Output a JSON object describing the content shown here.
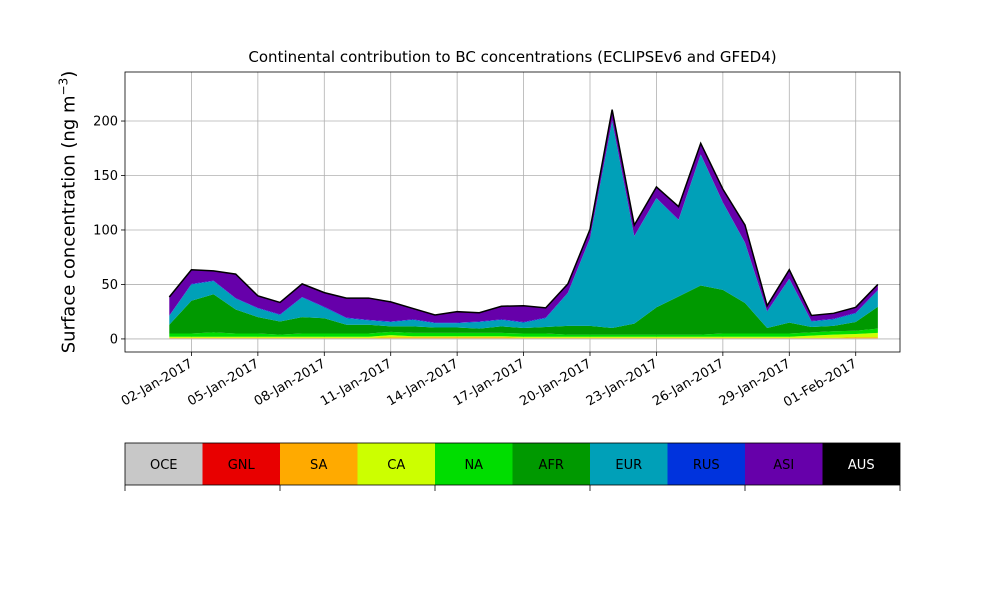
{
  "chart_data": {
    "type": "area",
    "stacked": true,
    "title": "Continental contribution to BC concentrations (ECLIPSEv6 and GFED4)",
    "xlabel": "",
    "ylabel_main": "Surface concentration (ng m",
    "ylabel_sup": "−3",
    "ylabel_end": ")",
    "x_start": "2017-01-01",
    "x_end": "2017-02-01",
    "xlim": [
      "2016-12-30",
      "2017-02-03"
    ],
    "ylim": [
      -12,
      245
    ],
    "y_ticks": [
      0,
      50,
      100,
      150,
      200
    ],
    "x_tick_labels": [
      "02-Jan-2017",
      "05-Jan-2017",
      "08-Jan-2017",
      "11-Jan-2017",
      "14-Jan-2017",
      "17-Jan-2017",
      "20-Jan-2017",
      "23-Jan-2017",
      "26-Jan-2017",
      "29-Jan-2017",
      "01-Feb-2017"
    ],
    "x_tick_dates": [
      "2017-01-02",
      "2017-01-05",
      "2017-01-08",
      "2017-01-11",
      "2017-01-14",
      "2017-01-17",
      "2017-01-20",
      "2017-01-23",
      "2017-01-26",
      "2017-01-29",
      "2017-02-01"
    ],
    "grid": true,
    "series": [
      {
        "name": "OCE",
        "color": "#c8c8c8",
        "values": [
          0.5,
          0.5,
          0.5,
          0.5,
          0.5,
          0.5,
          0.5,
          0.5,
          0.5,
          0.5,
          0.5,
          0.5,
          0.5,
          0.5,
          0.5,
          0.5,
          0.5,
          0.5,
          0.5,
          0.5,
          0.5,
          0.5,
          0.5,
          0.5,
          0.5,
          0.5,
          0.5,
          0.5,
          0.5,
          0.5,
          0.5,
          0.5,
          0.5
        ]
      },
      {
        "name": "GNL",
        "color": "#e80000",
        "values": [
          0,
          0,
          0,
          0,
          0,
          0,
          0,
          0,
          0,
          0,
          0,
          0,
          0,
          0,
          0,
          0,
          0,
          0,
          0,
          0,
          0,
          0,
          0,
          0,
          0,
          0,
          0,
          0,
          0,
          0,
          0,
          0,
          0
        ]
      },
      {
        "name": "SA",
        "color": "#ffaa00",
        "values": [
          0.5,
          0.5,
          0.5,
          0.5,
          0.5,
          0.5,
          0.5,
          0.5,
          0.5,
          0.5,
          1,
          1,
          1,
          1,
          1,
          1,
          0.5,
          0.5,
          0.5,
          0.5,
          0.5,
          0.5,
          0.5,
          0.5,
          0.5,
          0.5,
          0.5,
          0.5,
          0.5,
          0.5,
          0.5,
          1,
          1
        ]
      },
      {
        "name": "CA",
        "color": "#ccff00",
        "values": [
          1,
          1,
          1,
          1,
          1,
          1,
          1,
          1,
          1,
          1,
          2,
          1,
          1,
          1,
          1,
          1,
          1,
          1,
          1,
          1,
          1,
          1,
          1,
          1,
          1,
          1,
          1,
          1,
          1,
          2,
          3,
          3,
          4
        ]
      },
      {
        "name": "NA",
        "color": "#00dd00",
        "values": [
          3,
          3,
          4,
          3,
          3,
          2,
          3,
          3,
          3,
          3,
          3,
          3,
          3,
          3,
          3,
          3,
          3,
          3,
          2,
          2,
          2,
          2,
          2,
          2,
          2,
          3,
          3,
          3,
          3,
          3,
          3,
          3,
          4
        ]
      },
      {
        "name": "AFR",
        "color": "#009900",
        "values": [
          8,
          30,
          35,
          22,
          15,
          12,
          15,
          14,
          8,
          8,
          5,
          6,
          5,
          5,
          4,
          6,
          5,
          6,
          8,
          8,
          6,
          10,
          25,
          35,
          45,
          40,
          28,
          5,
          10,
          5,
          5,
          8,
          20
        ]
      },
      {
        "name": "EUR",
        "color": "#00a0b8",
        "values": [
          8,
          15,
          12,
          10,
          8,
          6,
          18,
          10,
          6,
          4,
          4,
          6,
          4,
          4,
          6,
          6,
          5,
          8,
          30,
          80,
          190,
          80,
          100,
          70,
          120,
          80,
          55,
          15,
          40,
          5,
          6,
          8,
          15
        ]
      },
      {
        "name": "RUS",
        "color": "#0033dd",
        "values": [
          0.5,
          0.5,
          0.5,
          0.5,
          0.5,
          0.5,
          0.5,
          0.5,
          0.5,
          0.5,
          0.5,
          0.5,
          0.5,
          0.5,
          0.5,
          0.5,
          0.5,
          0.5,
          0.5,
          0.5,
          0.5,
          0.5,
          0.5,
          0.5,
          0.5,
          0.5,
          0.5,
          0.5,
          0.5,
          0.5,
          0.5,
          0.5,
          0.5
        ]
      },
      {
        "name": "ASI",
        "color": "#6600aa",
        "values": [
          17,
          13,
          9,
          22,
          11,
          11,
          12,
          13,
          18,
          20,
          18,
          10,
          7,
          10,
          8,
          12,
          15,
          9,
          8,
          8,
          10,
          10,
          10,
          12,
          10,
          12,
          16,
          5,
          8,
          5,
          5,
          5,
          5
        ]
      },
      {
        "name": "AUS",
        "color": "#000000",
        "values": [
          0,
          0,
          0,
          0,
          0,
          0,
          0,
          0,
          0,
          0,
          0,
          0,
          0,
          0,
          0,
          0,
          0,
          0,
          0,
          0,
          0,
          0,
          0,
          0,
          0,
          0,
          0,
          0,
          0,
          0,
          0,
          0,
          0
        ]
      }
    ]
  }
}
